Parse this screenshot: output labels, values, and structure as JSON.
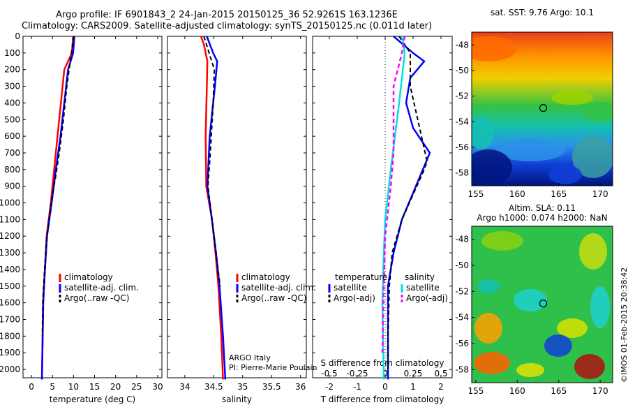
{
  "header": {
    "line1": "Argo profile: IF 6901843_2 24-Jan-2015 20150125_36 52.9261S 163.1236E",
    "line2": "Climatology: CARS2009. Satellite-adjusted climatology: synTS_20150125.nc (0.011d later)"
  },
  "credits": {
    "program": "ARGO Italy",
    "pi": "PI: Pierre-Marie Poulain",
    "imos": "©IMOS 01-Feb-2015 20:38:42"
  },
  "colors": {
    "climatology": "#ff0000",
    "satellite": "#0000ff",
    "argo": "#000000",
    "salinity_satellite": "#00e0e0",
    "salinity_argo": "#ff00ff"
  },
  "chart_data": [
    {
      "type": "line",
      "xlabel": "temperature (deg C)",
      "ylabel": "",
      "xlim": [
        -2,
        31
      ],
      "ylim": [
        2050,
        0
      ],
      "xticks": [
        0,
        5,
        10,
        15,
        20,
        25,
        30
      ],
      "yticks": [
        0,
        100,
        200,
        300,
        400,
        500,
        600,
        700,
        800,
        900,
        1000,
        1100,
        1200,
        1300,
        1400,
        1500,
        1600,
        1700,
        1800,
        1900,
        2000
      ],
      "legend": [
        "climatology",
        "satellite-adj. clim.",
        "Argo(..raw -QC)"
      ],
      "series": [
        {
          "name": "climatology",
          "x": [
            9.9,
            9.6,
            7.8,
            7.0,
            6.2,
            5.4,
            4.6,
            3.6,
            3.2,
            2.8,
            2.5
          ],
          "y": [
            0,
            100,
            200,
            400,
            600,
            800,
            1000,
            1200,
            1400,
            1600,
            2060
          ]
        },
        {
          "name": "satellite-adj. clim.",
          "x": [
            10.2,
            9.9,
            8.7,
            7.8,
            6.9,
            5.8,
            4.8,
            3.7,
            3.2,
            2.8,
            2.5
          ],
          "y": [
            0,
            100,
            200,
            400,
            600,
            800,
            1000,
            1200,
            1400,
            1600,
            2060
          ]
        },
        {
          "name": "Argo(..raw -QC)",
          "x": [
            10.0,
            9.8,
            9.5,
            8.4,
            7.6,
            6.6,
            5.7,
            4.7,
            3.7,
            3.1,
            2.7,
            2.6
          ],
          "y": [
            0,
            50,
            100,
            300,
            500,
            700,
            850,
            1000,
            1200,
            1400,
            1600,
            1800
          ]
        }
      ]
    },
    {
      "type": "line",
      "xlabel": "salinity",
      "ylabel": "",
      "xlim": [
        33.7,
        36.1
      ],
      "ylim": [
        2050,
        0
      ],
      "xticks": [
        34,
        34.5,
        35,
        35.5,
        36
      ],
      "legend": [
        "climatology",
        "satellite-adj. clim.",
        "Argo(..raw -QC)"
      ],
      "series": [
        {
          "name": "climatology",
          "x": [
            34.28,
            34.33,
            34.39,
            34.38,
            34.36,
            34.37,
            34.47,
            34.53,
            34.58,
            34.63,
            34.66
          ],
          "y": [
            0,
            50,
            150,
            300,
            600,
            900,
            1100,
            1300,
            1500,
            1800,
            2060
          ]
        },
        {
          "name": "satellite-adj. clim.",
          "x": [
            34.38,
            34.49,
            34.56,
            34.52,
            34.43,
            34.39,
            34.47,
            34.54,
            34.6,
            34.66,
            34.7
          ],
          "y": [
            0,
            100,
            150,
            300,
            600,
            900,
            1100,
            1300,
            1500,
            1800,
            2060
          ]
        },
        {
          "name": "Argo(..raw -QC)",
          "x": [
            34.33,
            34.42,
            34.51,
            34.49,
            34.44,
            34.4,
            34.47,
            34.54,
            34.61
          ],
          "y": [
            0,
            100,
            200,
            400,
            700,
            900,
            1100,
            1300,
            1500
          ]
        }
      ]
    },
    {
      "type": "line",
      "xlabel": "T difference from climatology",
      "title": "S difference from climatology",
      "xlim": [
        -2.6,
        2.4
      ],
      "ylim": [
        2050,
        0
      ],
      "xticks": [
        -2,
        -1,
        0,
        1,
        2
      ],
      "s_ticks": [
        -0.5,
        -0.25,
        0,
        0.25,
        0.5
      ],
      "legend_headings": [
        "temperature",
        "salinity"
      ],
      "legend": [
        "satellite",
        "Argo(-adj)",
        "satellite",
        "Argo(-adj)"
      ],
      "series": [
        {
          "name": "satellite",
          "x": [
            0.3,
            1.0,
            1.4,
            0.9,
            0.75,
            1.0,
            1.6,
            1.1,
            0.6,
            0.3,
            0.1,
            0.1
          ],
          "y": [
            0,
            100,
            150,
            250,
            400,
            550,
            700,
            900,
            1100,
            1300,
            1500,
            2060
          ]
        },
        {
          "name": "Argo(-adj)",
          "x": [
            0.5,
            0.9,
            0.9,
            1.3,
            1.5,
            1.4,
            1.0,
            0.6,
            0.25,
            0.15,
            0.1,
            0.1
          ],
          "y": [
            0,
            100,
            300,
            600,
            750,
            800,
            950,
            1100,
            1300,
            1500,
            1800,
            2000
          ]
        },
        {
          "name": "satellite",
          "x": [
            0.6,
            0.7,
            0.5,
            0.2,
            0.0,
            -0.05,
            -0.1,
            -0.05
          ],
          "y": [
            0,
            100,
            400,
            800,
            1100,
            1300,
            1600,
            2060
          ]
        },
        {
          "name": "Argo(-adj)",
          "x": [
            0.7,
            0.6,
            0.3,
            0.3,
            0.2,
            0.0,
            -0.05,
            -0.1
          ],
          "y": [
            0,
            100,
            300,
            700,
            900,
            1200,
            1500,
            1900
          ]
        }
      ]
    },
    {
      "type": "heatmap",
      "title": "sat. SST: 9.76 Argo: 10.1",
      "xlim": [
        154.5,
        171.5
      ],
      "ylim": [
        -59,
        -47
      ],
      "xticks": [
        155,
        160,
        165,
        170
      ],
      "yticks": [
        -48,
        -50,
        -52,
        -54,
        -56,
        -58
      ],
      "marker": {
        "lon": 163.1236,
        "lat": -52.9261
      }
    },
    {
      "type": "heatmap",
      "title": "Altim. SLA: 0.11",
      "subtitle": "Argo h1000: 0.074 h2000: NaN",
      "xlim": [
        154.5,
        171.5
      ],
      "ylim": [
        -59,
        -47
      ],
      "xticks": [
        155,
        160,
        165,
        170
      ],
      "yticks": [
        -48,
        -50,
        -52,
        -54,
        -56,
        -58
      ],
      "marker": {
        "lon": 163.1236,
        "lat": -52.9261
      }
    }
  ]
}
